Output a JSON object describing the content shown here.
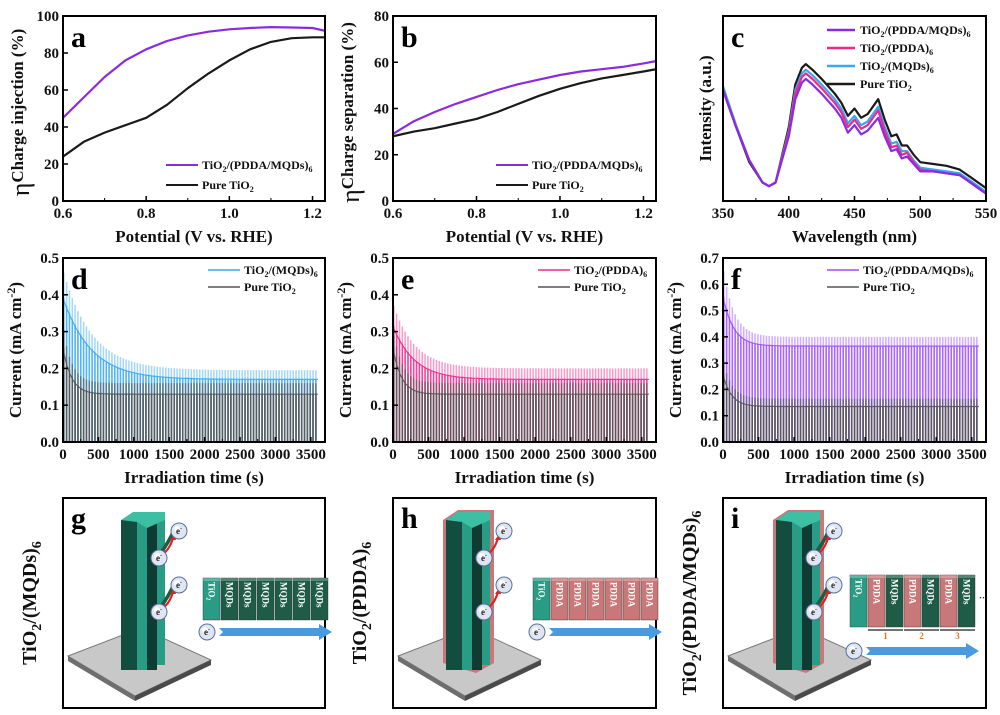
{
  "figure": {
    "panels_label_order": [
      "a",
      "b",
      "c",
      "d",
      "e",
      "f",
      "g",
      "h",
      "i"
    ]
  },
  "colors": {
    "purple": "#8a2be2",
    "pink": "#f0288c",
    "blue": "#38a8f0",
    "black": "#1a1a1a",
    "teal": "#2a9c85",
    "dark_teal": "#124d40",
    "pdda": "#c87878",
    "mqd": "#1f5c48",
    "arrow": "#4a9ae0",
    "substrate": "#c8c8c8"
  },
  "chart_data": [
    {
      "id": "a",
      "panel_label": "a",
      "type": "line",
      "title": "",
      "xlabel": "Potential (V vs. RHE)",
      "ylabel_main": "η",
      "ylabel_sub": "Charge injection",
      "ylabel_suffix": " (%)",
      "xlim": [
        0.6,
        1.23
      ],
      "ylim": [
        0,
        100
      ],
      "xticks": [
        0.6,
        0.8,
        1.0,
        1.2
      ],
      "xtick_labels": [
        "0.6",
        "0.8",
        "1.0",
        "1.2"
      ],
      "yticks": [
        0,
        20,
        40,
        60,
        80,
        100
      ],
      "ytick_labels": [
        "0",
        "20",
        "40",
        "60",
        "80",
        "100"
      ],
      "legend_position": "bottom-right",
      "series": [
        {
          "name": "TiO2/(PDDA/MQDs)6",
          "label_main": "TiO",
          "label_sub1": "2",
          "label_mid": "/(PDDA/MQDs)",
          "label_sub2": "6",
          "color": "#8a2be2",
          "x": [
            0.6,
            0.65,
            0.7,
            0.75,
            0.8,
            0.85,
            0.9,
            0.95,
            1.0,
            1.05,
            1.1,
            1.15,
            1.2,
            1.23
          ],
          "y": [
            45,
            56,
            67,
            76,
            82,
            86.5,
            89.5,
            91.5,
            92.8,
            93.5,
            94,
            93.8,
            93.5,
            92
          ]
        },
        {
          "name": "Pure TiO2",
          "label_main": "Pure TiO",
          "label_sub1": "2",
          "label_mid": "",
          "label_sub2": "",
          "color": "#1a1a1a",
          "x": [
            0.6,
            0.65,
            0.7,
            0.75,
            0.8,
            0.85,
            0.9,
            0.95,
            1.0,
            1.05,
            1.1,
            1.15,
            1.2,
            1.23
          ],
          "y": [
            24,
            32,
            37,
            41,
            45,
            52,
            61,
            69,
            76,
            82,
            86,
            88,
            88.5,
            88.5
          ]
        }
      ]
    },
    {
      "id": "b",
      "panel_label": "b",
      "type": "line",
      "title": "",
      "xlabel": "Potential (V vs. RHE)",
      "ylabel_main": "η",
      "ylabel_sub": "Charge separation",
      "ylabel_suffix": " (%)",
      "xlim": [
        0.6,
        1.23
      ],
      "ylim": [
        0,
        80
      ],
      "xticks": [
        0.6,
        0.8,
        1.0,
        1.2
      ],
      "xtick_labels": [
        "0.6",
        "0.8",
        "1.0",
        "1.2"
      ],
      "yticks": [
        0,
        20,
        40,
        60,
        80
      ],
      "ytick_labels": [
        "0",
        "20",
        "40",
        "60",
        "80"
      ],
      "legend_position": "bottom-right",
      "series": [
        {
          "name": "TiO2/(PDDA/MQDs)6",
          "label_main": "TiO",
          "label_sub1": "2",
          "label_mid": "/(PDDA/MQDs)",
          "label_sub2": "6",
          "color": "#8a2be2",
          "x": [
            0.6,
            0.65,
            0.7,
            0.75,
            0.8,
            0.85,
            0.9,
            0.95,
            1.0,
            1.05,
            1.1,
            1.15,
            1.2,
            1.23
          ],
          "y": [
            29,
            34.5,
            38.5,
            42,
            45,
            48,
            50.5,
            52.5,
            54.5,
            56,
            57,
            58,
            59.5,
            60.5
          ]
        },
        {
          "name": "Pure TiO2",
          "label_main": "Pure TiO",
          "label_sub1": "2",
          "label_mid": "",
          "label_sub2": "",
          "color": "#1a1a1a",
          "x": [
            0.6,
            0.65,
            0.7,
            0.75,
            0.8,
            0.85,
            0.9,
            0.95,
            1.0,
            1.05,
            1.1,
            1.15,
            1.2,
            1.23
          ],
          "y": [
            28,
            30,
            31.5,
            33.5,
            35.5,
            38.5,
            42,
            45.5,
            48.5,
            51,
            53,
            54.5,
            56,
            57
          ]
        }
      ]
    },
    {
      "id": "c",
      "panel_label": "c",
      "type": "line",
      "title": "",
      "xlabel": "Wavelength (nm)",
      "ylabel_main": "Intensity (a.u.)",
      "ylabel_sub": "",
      "ylabel_suffix": "",
      "xlim": [
        350,
        550
      ],
      "ylim": [
        0,
        1
      ],
      "xticks": [
        350,
        400,
        450,
        500,
        550
      ],
      "xtick_labels": [
        "350",
        "400",
        "450",
        "500",
        "550"
      ],
      "yticks": [],
      "ytick_labels": [],
      "legend_position": "top-right",
      "series": [
        {
          "name": "TiO2/(PDDA/MQDs)6",
          "label_main": "TiO",
          "label_sub1": "2",
          "label_mid": "/(PDDA/MQDs)",
          "label_sub2": "6",
          "color": "#8a2be2",
          "x": [
            350,
            360,
            370,
            380,
            385,
            390,
            400,
            405,
            410,
            413,
            418,
            425,
            435,
            440,
            445,
            450,
            455,
            460,
            468,
            473,
            478,
            482,
            486,
            490,
            495,
            500,
            510,
            520,
            530,
            540,
            550
          ],
          "y": [
            0.6,
            0.4,
            0.22,
            0.1,
            0.08,
            0.1,
            0.35,
            0.55,
            0.64,
            0.66,
            0.63,
            0.58,
            0.5,
            0.45,
            0.37,
            0.41,
            0.36,
            0.38,
            0.45,
            0.35,
            0.27,
            0.28,
            0.23,
            0.24,
            0.2,
            0.16,
            0.16,
            0.15,
            0.14,
            0.09,
            0.04
          ]
        },
        {
          "name": "TiO2/(PDDA)6",
          "label_main": "TiO",
          "label_sub1": "2",
          "label_mid": "/(PDDA)",
          "label_sub2": "6",
          "color": "#f0288c",
          "x": [
            350,
            360,
            370,
            380,
            385,
            390,
            400,
            405,
            410,
            413,
            418,
            425,
            435,
            440,
            445,
            450,
            455,
            460,
            468,
            473,
            478,
            482,
            486,
            490,
            495,
            500,
            510,
            520,
            530,
            540,
            550
          ],
          "y": [
            0.6,
            0.4,
            0.22,
            0.1,
            0.08,
            0.1,
            0.37,
            0.58,
            0.67,
            0.69,
            0.66,
            0.61,
            0.53,
            0.48,
            0.4,
            0.44,
            0.39,
            0.41,
            0.49,
            0.38,
            0.29,
            0.3,
            0.25,
            0.26,
            0.21,
            0.17,
            0.16,
            0.15,
            0.14,
            0.09,
            0.04
          ]
        },
        {
          "name": "TiO2/(MQDs)6",
          "label_main": "TiO",
          "label_sub1": "2",
          "label_mid": "/(MQDs)",
          "label_sub2": "6",
          "color": "#38a8f0",
          "x": [
            350,
            360,
            370,
            380,
            385,
            390,
            400,
            405,
            410,
            413,
            418,
            425,
            435,
            440,
            445,
            450,
            455,
            460,
            468,
            473,
            478,
            482,
            486,
            490,
            495,
            500,
            510,
            520,
            530,
            540,
            550
          ],
          "y": [
            0.62,
            0.41,
            0.22,
            0.1,
            0.08,
            0.1,
            0.38,
            0.6,
            0.69,
            0.71,
            0.68,
            0.63,
            0.55,
            0.5,
            0.42,
            0.46,
            0.41,
            0.43,
            0.51,
            0.4,
            0.31,
            0.32,
            0.27,
            0.27,
            0.22,
            0.18,
            0.17,
            0.16,
            0.15,
            0.1,
            0.05
          ]
        },
        {
          "name": "Pure TiO2",
          "label_main": "Pure TiO",
          "label_sub1": "2",
          "label_mid": "",
          "label_sub2": "",
          "color": "#1a1a1a",
          "x": [
            350,
            360,
            370,
            380,
            385,
            390,
            400,
            405,
            410,
            413,
            418,
            425,
            435,
            440,
            445,
            450,
            455,
            460,
            468,
            473,
            478,
            482,
            486,
            490,
            495,
            500,
            510,
            520,
            530,
            540,
            550
          ],
          "y": [
            0.6,
            0.4,
            0.21,
            0.1,
            0.08,
            0.1,
            0.4,
            0.63,
            0.72,
            0.74,
            0.71,
            0.66,
            0.58,
            0.53,
            0.46,
            0.5,
            0.45,
            0.47,
            0.55,
            0.44,
            0.35,
            0.36,
            0.3,
            0.3,
            0.25,
            0.21,
            0.2,
            0.19,
            0.17,
            0.12,
            0.07
          ]
        }
      ]
    },
    {
      "id": "d",
      "panel_label": "d",
      "type": "area",
      "title": "",
      "xlabel": "Irradiation time (s)",
      "ylabel_main": "Current (mA cm",
      "ylabel_sup": "-2",
      "ylabel_suffix": ")",
      "xlim": [
        0,
        3700
      ],
      "ylim": [
        0,
        0.5
      ],
      "xticks": [
        0,
        500,
        1000,
        1500,
        2000,
        2500,
        3000,
        3500
      ],
      "xtick_labels": [
        "0",
        "500",
        "1000",
        "1500",
        "2000",
        "2500",
        "3000",
        "3500"
      ],
      "yticks": [
        0.0,
        0.1,
        0.2,
        0.3,
        0.4,
        0.5
      ],
      "ytick_labels": [
        "0.0",
        "0.1",
        "0.2",
        "0.3",
        "0.4",
        "0.5"
      ],
      "legend_position": "top-right",
      "x_end": 3600,
      "series": [
        {
          "name": "TiO2/(MQDs)6",
          "label_main": "TiO",
          "label_sub1": "2",
          "label_mid": "/(MQDs)",
          "label_sub2": "6",
          "color": "#38a8f0",
          "initial": 0.46,
          "decay_tau": 400,
          "steady_peak": 0.195,
          "steady_base": 0.17
        },
        {
          "name": "Pure TiO2",
          "label_main": "Pure TiO",
          "label_sub1": "2",
          "label_mid": "",
          "label_sub2": "",
          "color": "#555555",
          "initial": 0.3,
          "decay_tau": 120,
          "steady_peak": 0.16,
          "steady_base": 0.13
        }
      ]
    },
    {
      "id": "e",
      "panel_label": "e",
      "type": "area",
      "title": "",
      "xlabel": "Irradiation time (s)",
      "ylabel_main": "Current (mA cm",
      "ylabel_sup": "-2",
      "ylabel_suffix": ")",
      "xlim": [
        0,
        3700
      ],
      "ylim": [
        0,
        0.5
      ],
      "xticks": [
        0,
        500,
        1000,
        1500,
        2000,
        2500,
        3000,
        3500
      ],
      "xtick_labels": [
        "0",
        "500",
        "1000",
        "1500",
        "2000",
        "2500",
        "3000",
        "3500"
      ],
      "yticks": [
        0.0,
        0.1,
        0.2,
        0.3,
        0.4,
        0.5
      ],
      "ytick_labels": [
        "0.0",
        "0.1",
        "0.2",
        "0.3",
        "0.4",
        "0.5"
      ],
      "legend_position": "top-right",
      "x_end": 3600,
      "series": [
        {
          "name": "TiO2/(PDDA)6",
          "label_main": "TiO",
          "label_sub1": "2",
          "label_mid": "/(PDDA)",
          "label_sub2": "6",
          "color": "#f0288c",
          "initial": 0.37,
          "decay_tau": 300,
          "steady_peak": 0.2,
          "steady_base": 0.17
        },
        {
          "name": "Pure TiO2",
          "label_main": "Pure TiO",
          "label_sub1": "2",
          "label_mid": "",
          "label_sub2": "",
          "color": "#555555",
          "initial": 0.3,
          "decay_tau": 120,
          "steady_peak": 0.16,
          "steady_base": 0.13
        }
      ]
    },
    {
      "id": "f",
      "panel_label": "f",
      "type": "area",
      "title": "",
      "xlabel": "Irradiation time (s)",
      "ylabel_main": "Current (mA cm",
      "ylabel_sup": "-2",
      "ylabel_suffix": ")",
      "xlim": [
        0,
        3700
      ],
      "ylim": [
        0,
        0.7
      ],
      "xticks": [
        0,
        500,
        1000,
        1500,
        2000,
        2500,
        3000,
        3500
      ],
      "xtick_labels": [
        "0",
        "500",
        "1000",
        "1500",
        "2000",
        "2500",
        "3000",
        "3500"
      ],
      "yticks": [
        0.0,
        0.1,
        0.2,
        0.3,
        0.4,
        0.5,
        0.6,
        0.7
      ],
      "ytick_labels": [
        "0.0",
        "0.1",
        "0.2",
        "0.3",
        "0.4",
        "0.5",
        "0.6",
        "0.7"
      ],
      "legend_position": "top-right",
      "x_end": 3600,
      "series": [
        {
          "name": "TiO2/(PDDA/MQDs)6",
          "label_main": "TiO",
          "label_sub1": "2",
          "label_mid": "/(PDDA/MQDs)",
          "label_sub2": "6",
          "color": "#9b4dff",
          "initial": 0.65,
          "decay_tau": 150,
          "steady_peak": 0.4,
          "steady_base": 0.365
        },
        {
          "name": "Pure TiO2",
          "label_main": "Pure TiO",
          "label_sub1": "2",
          "label_mid": "",
          "label_sub2": "",
          "color": "#555555",
          "initial": 0.3,
          "decay_tau": 120,
          "steady_peak": 0.165,
          "steady_base": 0.135
        }
      ]
    }
  ],
  "schematics": [
    {
      "id": "g",
      "panel_label": "g",
      "side_label_main": "TiO",
      "side_label_sub": "2",
      "side_label_rest": "/(MQDs)",
      "side_label_sub2": "6",
      "coating": "none",
      "blocks": [
        "TiO2",
        "MQDs",
        "MQDs",
        "MQDs",
        "MQDs",
        "MQDs",
        "MQDs"
      ],
      "block_numbers": [],
      "ellipsis": "",
      "electron_label": "e",
      "electron_sup": "-"
    },
    {
      "id": "h",
      "panel_label": "h",
      "side_label_main": "TiO",
      "side_label_sub": "2",
      "side_label_rest": "/(PDDA)",
      "side_label_sub2": "6",
      "coating": "pdda",
      "blocks": [
        "TiO2",
        "PDDA",
        "PDDA",
        "PDDA",
        "PDDA",
        "PDDA",
        "PDDA"
      ],
      "block_numbers": [],
      "ellipsis": "",
      "electron_label": "e",
      "electron_sup": "-"
    },
    {
      "id": "i",
      "panel_label": "i",
      "side_label_main": "TiO",
      "side_label_sub": "2",
      "side_label_rest": "/(PDDA/MQDs)",
      "side_label_sub2": "6",
      "coating": "pdda",
      "blocks": [
        "TiO2",
        "PDDA",
        "MQDs",
        "PDDA",
        "MQDs",
        "PDDA",
        "MQDs"
      ],
      "block_numbers": [
        "1",
        "2",
        "3"
      ],
      "ellipsis": "···",
      "electron_label": "e",
      "electron_sup": "-"
    }
  ]
}
